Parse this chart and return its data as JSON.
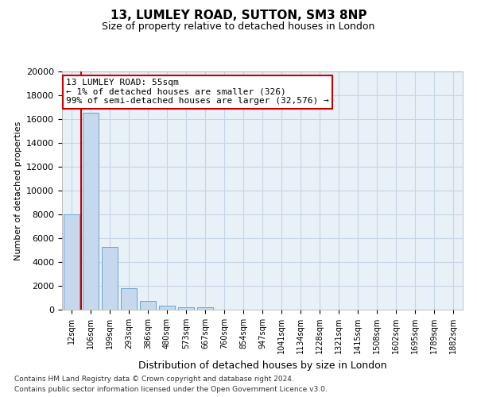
{
  "title1": "13, LUMLEY ROAD, SUTTON, SM3 8NP",
  "title2": "Size of property relative to detached houses in London",
  "xlabel": "Distribution of detached houses by size in London",
  "ylabel": "Number of detached properties",
  "categories": [
    "12sqm",
    "106sqm",
    "199sqm",
    "293sqm",
    "386sqm",
    "480sqm",
    "573sqm",
    "667sqm",
    "760sqm",
    "854sqm",
    "947sqm",
    "1041sqm",
    "1134sqm",
    "1228sqm",
    "1321sqm",
    "1415sqm",
    "1508sqm",
    "1602sqm",
    "1695sqm",
    "1789sqm",
    "1882sqm"
  ],
  "values": [
    8000,
    16500,
    5300,
    1800,
    750,
    330,
    220,
    200,
    0,
    0,
    0,
    0,
    0,
    0,
    0,
    0,
    0,
    0,
    0,
    0,
    0
  ],
  "bar_color": "#c5d8ed",
  "bar_edge_color": "#6ea6cc",
  "highlight_color": "#cc0000",
  "annotation_text": "13 LUMLEY ROAD: 55sqm\n← 1% of detached houses are smaller (326)\n99% of semi-detached houses are larger (32,576) →",
  "annotation_box_color": "#ffffff",
  "annotation_box_edge": "#cc0000",
  "grid_color": "#c5d5e5",
  "plot_bg_color": "#e8f0f8",
  "background_color": "#ffffff",
  "ylim": [
    0,
    20000
  ],
  "yticks": [
    0,
    2000,
    4000,
    6000,
    8000,
    10000,
    12000,
    14000,
    16000,
    18000,
    20000
  ],
  "footer1": "Contains HM Land Registry data © Crown copyright and database right 2024.",
  "footer2": "Contains public sector information licensed under the Open Government Licence v3.0."
}
